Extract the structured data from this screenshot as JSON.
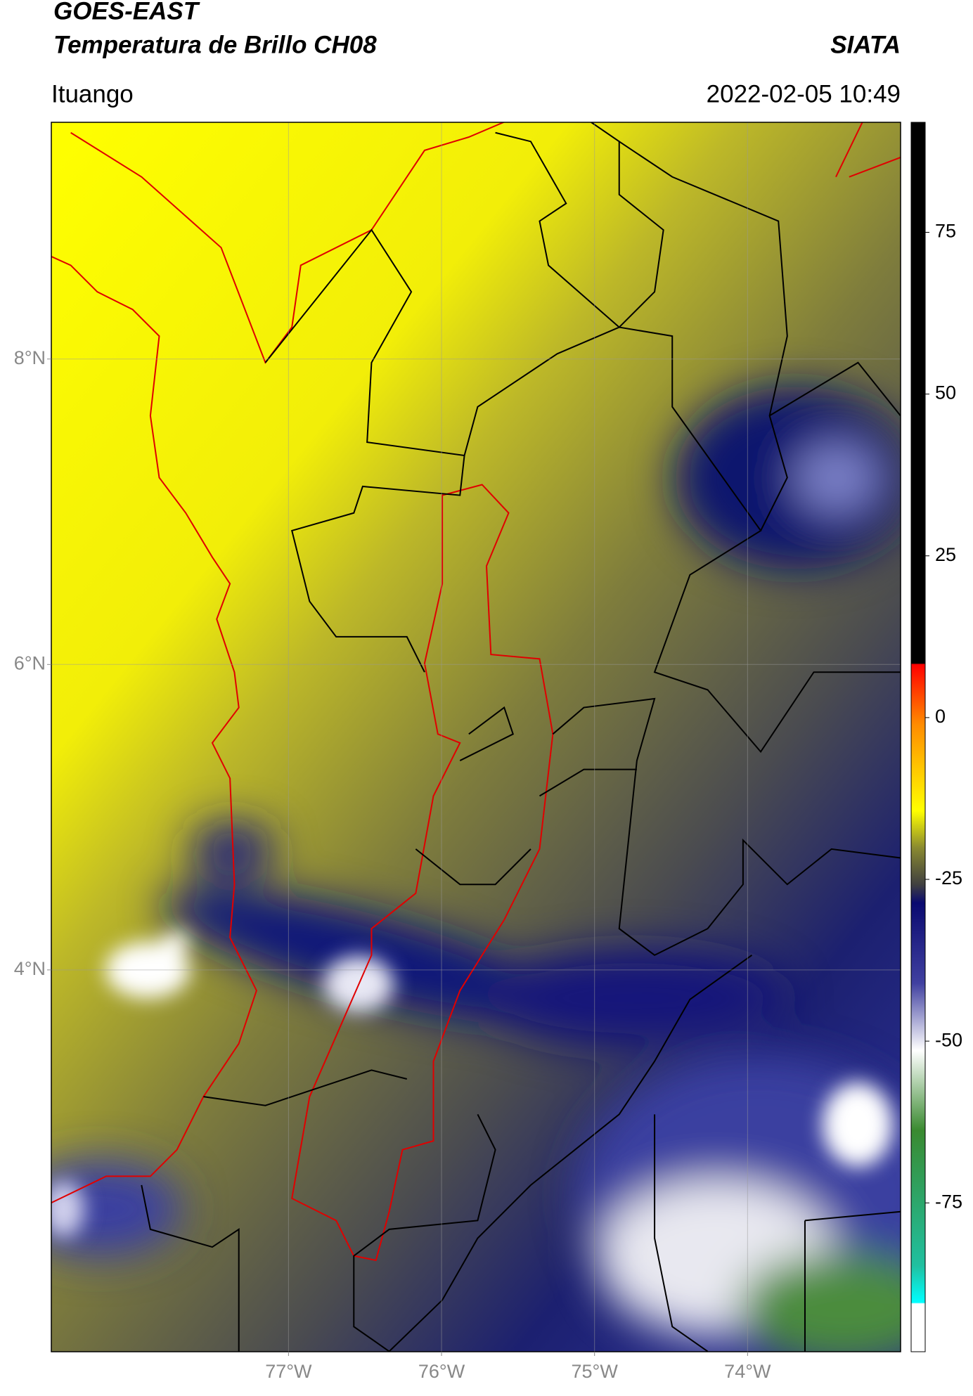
{
  "map": {
    "title": "GOES-EAST",
    "subtitle": "Temperatura de Brillo CH08",
    "source": "SIATA",
    "location": "Ituango",
    "datetime": "2022-02-05 10:49",
    "xlim": [
      -78.55,
      -73.0
    ],
    "ylim": [
      1.5,
      9.55
    ],
    "xticks": [
      {
        "value": -77,
        "label": "77°W"
      },
      {
        "value": -76,
        "label": "76°W"
      },
      {
        "value": -75,
        "label": "75°W"
      },
      {
        "value": -74,
        "label": "74°W"
      }
    ],
    "yticks": [
      {
        "value": 8,
        "label": "8°N"
      },
      {
        "value": 6,
        "label": "6°N"
      },
      {
        "value": 4,
        "label": "4°N"
      }
    ],
    "colorbar": {
      "lim": [
        -98,
        92
      ],
      "ticks": [
        75,
        50,
        25,
        0,
        -25,
        -50,
        -75
      ]
    }
  }
}
